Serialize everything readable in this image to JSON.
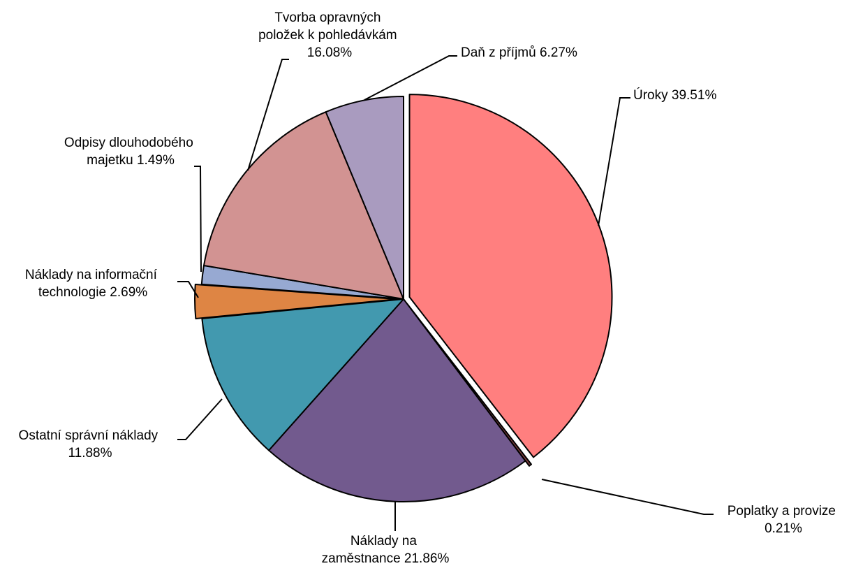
{
  "chart_data": {
    "type": "pie",
    "title": "",
    "slices": [
      {
        "label_lines": [
          "Úroky 39.51%"
        ],
        "value": 39.51,
        "color": "#FF7F7F",
        "exploded": true
      },
      {
        "label_lines": [
          "Poplatky a provize",
          "0.21%"
        ],
        "value": 0.21,
        "color": "#7F3F3F",
        "exploded": true
      },
      {
        "label_lines": [
          "Náklady na",
          "zaměstnance 21.86%"
        ],
        "value": 21.86,
        "color": "#725A8E",
        "exploded": false
      },
      {
        "label_lines": [
          "Ostatní správní náklady",
          "11.88%"
        ],
        "value": 11.88,
        "color": "#4299AF",
        "exploded": false
      },
      {
        "label_lines": [
          "Náklady na informační",
          "technologie 2.69%"
        ],
        "value": 2.69,
        "color": "#DE8544",
        "exploded": true
      },
      {
        "label_lines": [
          "Odpisy dlouhodobého",
          "majetku 1.49%"
        ],
        "value": 1.49,
        "color": "#97A9D2",
        "exploded": false
      },
      {
        "label_lines": [
          "Tvorba opravných",
          "položek k pohledávkám",
          "16.08%"
        ],
        "value": 16.08,
        "color": "#D29392",
        "exploded": false
      },
      {
        "label_lines": [
          "Daň z příjmů 6.27%"
        ],
        "value": 6.27,
        "color": "#A99BBF",
        "exploded": false
      }
    ]
  }
}
